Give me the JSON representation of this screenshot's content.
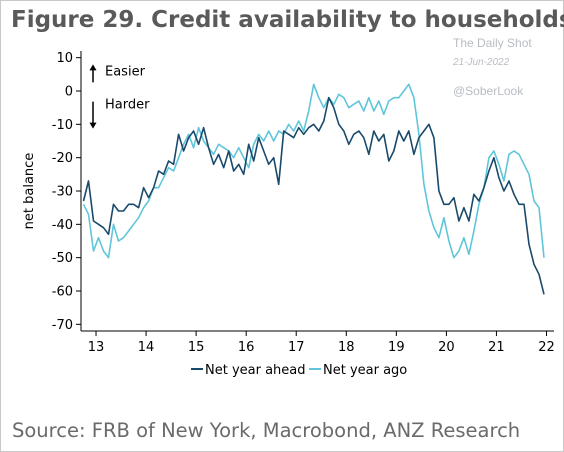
{
  "title": "Figure 29. Credit availability to households",
  "watermark": {
    "source": "The Daily Shot",
    "date": "21-Jun-2022",
    "handle": "@SoberLook"
  },
  "source_note": "Source: FRB of New York, Macrobond, ANZ Research",
  "colors": {
    "net_year_ahead": "#1a4a6b",
    "net_year_ago": "#5fc6d9",
    "title": "#5a5a5a"
  },
  "chart_data": {
    "type": "line",
    "ylabel": "net balance",
    "xlabel": "",
    "ylim": [
      -72,
      12
    ],
    "xlim": [
      12.7,
      22.15
    ],
    "yticks": [
      10,
      0,
      -10,
      -20,
      -30,
      -40,
      -50,
      -60,
      -70
    ],
    "xticks": [
      13,
      14,
      15,
      16,
      17,
      18,
      19,
      20,
      21,
      22
    ],
    "xtick_labels": [
      "13",
      "14",
      "15",
      "16",
      "17",
      "18",
      "19",
      "20",
      "21",
      "22"
    ],
    "grid": false,
    "legend": "bottom",
    "annotations": [
      {
        "text": "Easier",
        "direction": "up",
        "y": 5
      },
      {
        "text": "Harder",
        "direction": "down",
        "y": -5
      }
    ],
    "series": [
      {
        "name": "Net year ahead",
        "color": "#1a4a6b",
        "x": [
          12.75,
          12.85,
          12.95,
          13.05,
          13.15,
          13.25,
          13.35,
          13.45,
          13.55,
          13.65,
          13.75,
          13.85,
          13.95,
          14.05,
          14.15,
          14.25,
          14.35,
          14.45,
          14.55,
          14.65,
          14.75,
          14.85,
          14.95,
          15.05,
          15.15,
          15.25,
          15.35,
          15.45,
          15.55,
          15.65,
          15.75,
          15.85,
          15.95,
          16.05,
          16.15,
          16.25,
          16.35,
          16.45,
          16.55,
          16.65,
          16.75,
          16.85,
          16.95,
          17.05,
          17.15,
          17.25,
          17.35,
          17.45,
          17.55,
          17.65,
          17.75,
          17.85,
          17.95,
          18.05,
          18.15,
          18.25,
          18.35,
          18.45,
          18.55,
          18.65,
          18.75,
          18.85,
          18.95,
          19.05,
          19.15,
          19.25,
          19.35,
          19.45,
          19.55,
          19.65,
          19.75,
          19.85,
          19.95,
          20.05,
          20.15,
          20.25,
          20.35,
          20.45,
          20.55,
          20.65,
          20.75,
          20.85,
          20.95,
          21.05,
          21.15,
          21.25,
          21.35,
          21.45,
          21.55,
          21.65,
          21.75,
          21.85,
          21.95
        ],
        "values": [
          -33,
          -27,
          -39,
          -40,
          -41,
          -43,
          -34,
          -36,
          -36,
          -34,
          -34,
          -35,
          -29,
          -32,
          -29,
          -24,
          -25,
          -21,
          -22,
          -13,
          -18,
          -14,
          -12,
          -16,
          -11,
          -17,
          -22,
          -19,
          -23,
          -18,
          -24,
          -22,
          -25,
          -16,
          -21,
          -14,
          -18,
          -22,
          -20,
          -28,
          -12,
          -13,
          -14,
          -11,
          -13,
          -11,
          -10,
          -12,
          -9,
          -2,
          -5,
          -10,
          -12,
          -16,
          -13,
          -12,
          -14,
          -19,
          -12,
          -15,
          -13,
          -21,
          -18,
          -12,
          -15,
          -12,
          -19,
          -14,
          -12,
          -10,
          -14,
          -30,
          -34,
          -34,
          -32,
          -39,
          -35,
          -39,
          -31,
          -33,
          -29,
          -24,
          -20,
          -26,
          -30,
          -27,
          -31,
          -34,
          -34,
          -46,
          -52,
          -55,
          -61
        ]
      },
      {
        "name": "Net year ago",
        "color": "#5fc6d9",
        "x": [
          12.75,
          12.85,
          12.95,
          13.05,
          13.15,
          13.25,
          13.35,
          13.45,
          13.55,
          13.65,
          13.75,
          13.85,
          13.95,
          14.05,
          14.15,
          14.25,
          14.35,
          14.45,
          14.55,
          14.65,
          14.75,
          14.85,
          14.95,
          15.05,
          15.15,
          15.25,
          15.35,
          15.45,
          15.55,
          15.65,
          15.75,
          15.85,
          15.95,
          16.05,
          16.15,
          16.25,
          16.35,
          16.45,
          16.55,
          16.65,
          16.75,
          16.85,
          16.95,
          17.05,
          17.15,
          17.25,
          17.35,
          17.45,
          17.55,
          17.65,
          17.75,
          17.85,
          17.95,
          18.05,
          18.15,
          18.25,
          18.35,
          18.45,
          18.55,
          18.65,
          18.75,
          18.85,
          18.95,
          19.05,
          19.15,
          19.25,
          19.35,
          19.45,
          19.55,
          19.65,
          19.75,
          19.85,
          19.95,
          20.05,
          20.15,
          20.25,
          20.35,
          20.45,
          20.55,
          20.65,
          20.75,
          20.85,
          20.95,
          21.05,
          21.15,
          21.25,
          21.35,
          21.45,
          21.55,
          21.65,
          21.75,
          21.85,
          21.95
        ],
        "values": [
          -34,
          -37,
          -48,
          -44,
          -48,
          -50,
          -40,
          -45,
          -44,
          -42,
          -40,
          -38,
          -35,
          -33,
          -29,
          -29,
          -26,
          -23,
          -24,
          -20,
          -16,
          -13,
          -17,
          -11,
          -15,
          -17,
          -19,
          -16,
          -17,
          -18,
          -20,
          -17,
          -20,
          -23,
          -16,
          -13,
          -15,
          -12,
          -15,
          -12,
          -13,
          -10,
          -12,
          -9,
          -12,
          -6,
          2,
          -2,
          -5,
          -2,
          -4,
          -1,
          -2,
          -5,
          -4,
          -3,
          -6,
          -2,
          -6,
          -3,
          -7,
          -3,
          -2,
          -2,
          0,
          2,
          -2,
          -13,
          -28,
          -36,
          -41,
          -44,
          -38,
          -45,
          -50,
          -48,
          -44,
          -49,
          -42,
          -34,
          -29,
          -20,
          -18,
          -22,
          -27,
          -19,
          -18,
          -19,
          -22,
          -25,
          -33,
          -35,
          -50
        ]
      }
    ]
  }
}
